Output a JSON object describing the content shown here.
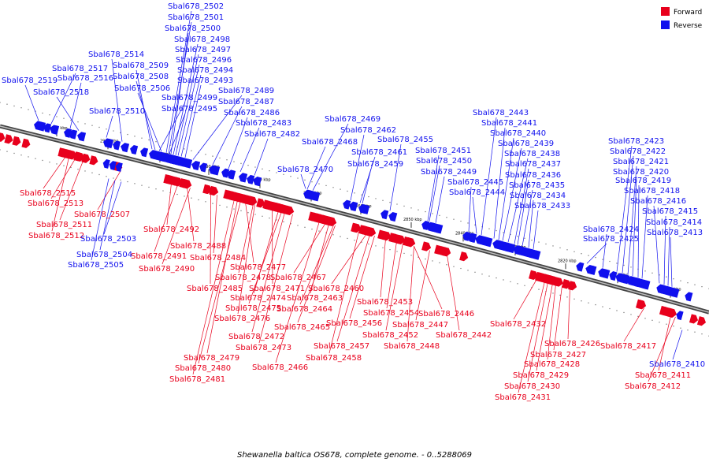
{
  "caption": "Shewanella baltica OS678, complete genome. - 0..5288069",
  "legend": [
    {
      "label": "Forward",
      "color": "#e8001c"
    },
    {
      "label": "Reverse",
      "color": "#1010ee"
    }
  ],
  "scale": {
    "ticks": [
      {
        "label": "2920 kbp",
        "x": 72
      },
      {
        "label": "2910 kbp",
        "x": 137
      },
      {
        "label": "2900 kbp",
        "x": 203
      },
      {
        "label": "2890 kbp",
        "x": 265
      },
      {
        "label": "2880 kbp",
        "x": 330
      },
      {
        "label": "2870 kbp",
        "x": 395
      },
      {
        "label": "2860 kbp",
        "x": 458
      },
      {
        "label": "2850 kbp",
        "x": 522
      },
      {
        "label": "2840 kbp",
        "x": 588
      },
      {
        "label": "2830 kbp",
        "x": 654
      },
      {
        "label": "2820 kbp",
        "x": 718
      },
      {
        "label": "2810 kbp",
        "x": 784
      },
      {
        "label": "2800 kbp",
        "x": 851
      }
    ]
  },
  "genes": {
    "reverse_top": [
      "Sbal678_2502",
      "Sbal678_2501",
      "Sbal678_2500",
      "Sbal678_2498",
      "Sbal678_2497",
      "Sbal678_2514",
      "Sbal678_2509",
      "Sbal678_2496",
      "Sbal678_2517",
      "Sbal678_2508",
      "Sbal678_2494",
      "Sbal678_2519",
      "Sbal678_2516",
      "Sbal678_2493",
      "Sbal678_2518",
      "Sbal678_2506",
      "Sbal678_2499",
      "Sbal678_2489",
      "Sbal678_2487",
      "Sbal678_2510",
      "Sbal678_2495",
      "Sbal678_2486",
      "Sbal678_2483",
      "Sbal678_2482",
      "Sbal678_2469",
      "Sbal678_2462",
      "Sbal678_2468",
      "Sbal678_2455",
      "Sbal678_2461",
      "Sbal678_2459",
      "Sbal678_2470",
      "Sbal678_2451",
      "Sbal678_2450",
      "Sbal678_2449",
      "Sbal678_2445",
      "Sbal678_2444",
      "Sbal678_2443",
      "Sbal678_2441",
      "Sbal678_2440",
      "Sbal678_2439",
      "Sbal678_2438",
      "Sbal678_2437",
      "Sbal678_2436",
      "Sbal678_2435",
      "Sbal678_2434",
      "Sbal678_2433",
      "Sbal678_2423",
      "Sbal678_2422",
      "Sbal678_2421",
      "Sbal678_2420",
      "Sbal678_2419",
      "Sbal678_2418",
      "Sbal678_2416",
      "Sbal678_2415",
      "Sbal678_2414",
      "Sbal678_2424",
      "Sbal678_2413",
      "Sbal678_2425"
    ],
    "forward_bottom": [
      "Sbal678_2515",
      "Sbal678_2513",
      "Sbal678_2507",
      "Sbal678_2511",
      "Sbal678_2512",
      "Sbal678_2492",
      "Sbal678_2488",
      "Sbal678_2491",
      "Sbal678_2484",
      "Sbal678_2490",
      "Sbal678_2477",
      "Sbal678_2478",
      "Sbal678_2467",
      "Sbal678_2485",
      "Sbal678_2471",
      "Sbal678_2460",
      "Sbal678_2474",
      "Sbal678_2463",
      "Sbal678_2475",
      "Sbal678_2464",
      "Sbal678_2476",
      "Sbal678_2465",
      "Sbal678_2472",
      "Sbal678_2473",
      "Sbal678_2479",
      "Sbal678_2480",
      "Sbal678_2481",
      "Sbal678_2466",
      "Sbal678_2453",
      "Sbal678_2454",
      "Sbal678_2456",
      "Sbal678_2446",
      "Sbal678_2447",
      "Sbal678_2452",
      "Sbal678_2457",
      "Sbal678_2448",
      "Sbal678_2442",
      "Sbal678_2458",
      "Sbal678_2432",
      "Sbal678_2426",
      "Sbal678_2427",
      "Sbal678_2428",
      "Sbal678_2429",
      "Sbal678_2430",
      "Sbal678_2431",
      "Sbal678_2417",
      "Sbal678_2411",
      "Sbal678_2412"
    ],
    "reverse_bottom": [
      "Sbal678_2503",
      "Sbal678_2504",
      "Sbal678_2505",
      "Sbal678_2410"
    ]
  }
}
